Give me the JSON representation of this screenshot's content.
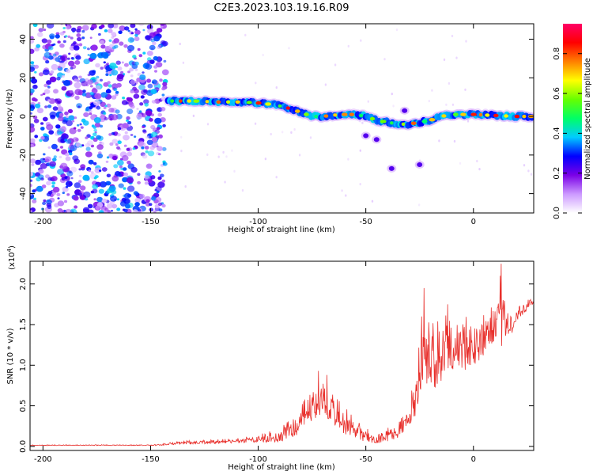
{
  "figure_title": "C2E3.2023.103.19.16.R09",
  "colorbar": {
    "label": "Normalized spectral amplitude",
    "ticks": [
      "0.0",
      "0.2",
      "0.4",
      "0.6",
      "0.8"
    ],
    "tick_values": [
      0.0,
      0.2,
      0.4,
      0.6,
      0.8
    ],
    "range": [
      0,
      0.95
    ],
    "stops": [
      "#ffffff",
      "#cc99ff",
      "#7a00e6",
      "#0000ff",
      "#00ccff",
      "#00ff66",
      "#66ff00",
      "#ffff00",
      "#ff8000",
      "#ff0000",
      "#ff0066"
    ]
  },
  "chart_data": [
    {
      "type": "heatmap",
      "xlabel": "Height of straight line (km)",
      "ylabel": "Frequency (Hz)",
      "xlim": [
        -206,
        28
      ],
      "ylim": [
        -50,
        48
      ],
      "xticks": [
        -200,
        -150,
        -100,
        -50,
        0
      ],
      "xtick_labels": [
        "-200",
        "-150",
        "-100",
        "-50",
        "0"
      ],
      "yticks": [
        -40,
        -20,
        0,
        20,
        40
      ],
      "ytick_labels": [
        "-40",
        "-20",
        "0",
        "20",
        "40"
      ],
      "noise_region_x": [
        -206,
        -143
      ],
      "noise_amplitude": 0.35,
      "main_trace": [
        [
          -142,
          8
        ],
        [
          -130,
          8
        ],
        [
          -120,
          7.5
        ],
        [
          -110,
          7.5
        ],
        [
          -100,
          7
        ],
        [
          -92,
          6
        ],
        [
          -85,
          4
        ],
        [
          -80,
          2
        ],
        [
          -75,
          0
        ],
        [
          -70,
          0
        ],
        [
          -62,
          1
        ],
        [
          -55,
          1
        ],
        [
          -50,
          0
        ],
        [
          -45,
          -2
        ],
        [
          -40,
          -3
        ],
        [
          -35,
          -4
        ],
        [
          -30,
          -4
        ],
        [
          -25,
          -3
        ],
        [
          -20,
          -2
        ],
        [
          -15,
          0
        ],
        [
          -10,
          1
        ],
        [
          -5,
          1
        ],
        [
          0,
          1
        ],
        [
          10,
          0.5
        ],
        [
          20,
          0
        ],
        [
          28,
          0
        ]
      ],
      "secondary_features": [
        [
          -50,
          -10
        ],
        [
          -45,
          -12
        ],
        [
          -38,
          -27
        ],
        [
          -25,
          -25
        ],
        [
          -32,
          3
        ]
      ],
      "peak_amplitude": 0.9
    },
    {
      "type": "line",
      "xlabel": "Height of straight line (km)",
      "ylabel": "SNR (10 * v/v)",
      "y_scale_label": "(x10",
      "y_scale_exponent": "4",
      "y_scale_suffix": ")",
      "xlim": [
        -206,
        28
      ],
      "ylim": [
        -0.05,
        2.28
      ],
      "xticks": [
        -200,
        -150,
        -100,
        -50,
        0
      ],
      "xtick_labels": [
        "-200",
        "-150",
        "-100",
        "-50",
        "0"
      ],
      "yticks": [
        0.0,
        0.5,
        1.0,
        1.5,
        2.0
      ],
      "ytick_labels": [
        "0.0",
        "0.5",
        "1.0",
        "1.5",
        "2.0"
      ],
      "series_color": "#e8302c",
      "envelope": [
        [
          -206,
          0.02,
          0.01
        ],
        [
          -150,
          0.02,
          0.01
        ],
        [
          -145,
          0.03,
          0.02
        ],
        [
          -140,
          0.06,
          0.04
        ],
        [
          -125,
          0.07,
          0.04
        ],
        [
          -110,
          0.09,
          0.05
        ],
        [
          -100,
          0.13,
          0.08
        ],
        [
          -90,
          0.2,
          0.15
        ],
        [
          -85,
          0.3,
          0.2
        ],
        [
          -80,
          0.45,
          0.3
        ],
        [
          -76,
          0.65,
          0.35
        ],
        [
          -72,
          0.8,
          0.45
        ],
        [
          -70,
          0.85,
          0.4
        ],
        [
          -66,
          0.6,
          0.35
        ],
        [
          -60,
          0.45,
          0.3
        ],
        [
          -55,
          0.3,
          0.2
        ],
        [
          -50,
          0.2,
          0.15
        ],
        [
          -45,
          0.15,
          0.12
        ],
        [
          -40,
          0.2,
          0.15
        ],
        [
          -35,
          0.3,
          0.2
        ],
        [
          -30,
          0.5,
          0.3
        ],
        [
          -27,
          0.8,
          0.45
        ],
        [
          -25,
          1.2,
          0.65
        ],
        [
          -24,
          1.5,
          0.8
        ],
        [
          -20,
          1.4,
          0.7
        ],
        [
          -15,
          1.45,
          0.7
        ],
        [
          -12,
          1.7,
          0.75
        ],
        [
          -8,
          1.55,
          0.7
        ],
        [
          -3,
          1.5,
          0.6
        ],
        [
          0,
          1.5,
          0.5
        ],
        [
          5,
          1.55,
          0.45
        ],
        [
          10,
          1.7,
          0.4
        ],
        [
          13,
          2.1,
          0.5
        ],
        [
          15,
          1.6,
          0.3
        ],
        [
          18,
          1.6,
          0.2
        ],
        [
          22,
          1.75,
          0.15
        ],
        [
          28,
          1.85,
          0.1
        ]
      ],
      "notable_peaks": [
        [
          -72,
          0.93
        ],
        [
          -68,
          0.88
        ],
        [
          -23,
          1.95
        ],
        [
          -24,
          1.6
        ],
        [
          -12,
          1.75
        ],
        [
          13,
          2.25
        ]
      ]
    }
  ]
}
